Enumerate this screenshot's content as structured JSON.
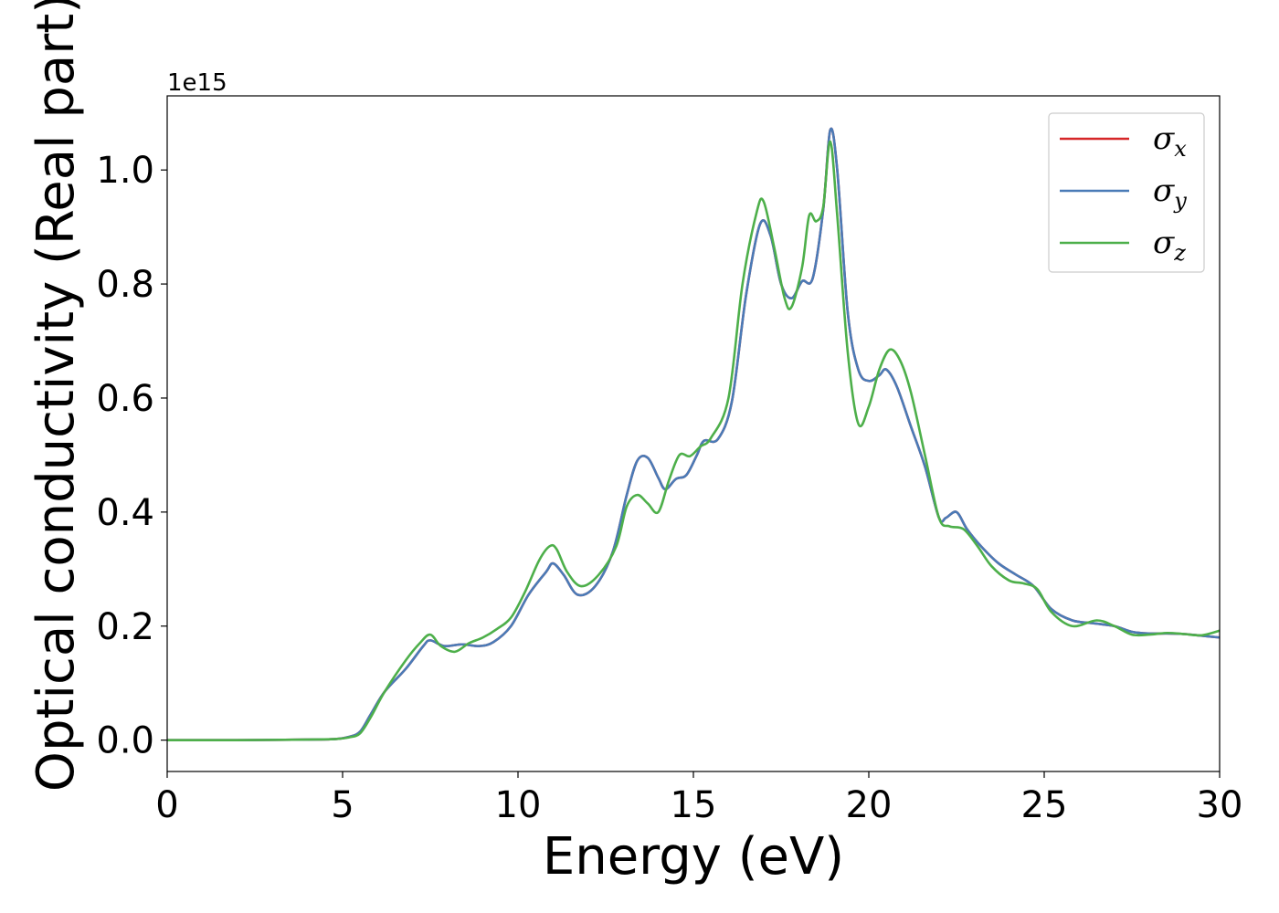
{
  "chart_data": {
    "type": "line",
    "title": "",
    "xlabel": "Energy (eV)",
    "ylabel": "Optical conductivity (Real part)",
    "y_offset_label": "1e15",
    "xlim": [
      0,
      30
    ],
    "ylim": [
      -0.055,
      1.13
    ],
    "x_ticks": [
      0,
      5,
      10,
      15,
      20,
      25,
      30
    ],
    "x_tick_labels": [
      "0",
      "5",
      "10",
      "15",
      "20",
      "25",
      "30"
    ],
    "y_ticks": [
      0.0,
      0.2,
      0.4,
      0.6,
      0.8,
      1.0
    ],
    "y_tick_labels": [
      "0.0",
      "0.2",
      "0.4",
      "0.6",
      "0.8",
      "1.0"
    ],
    "grid": false,
    "legend_position": "top-right",
    "colors": {
      "sigma_x": "#d62728",
      "sigma_y": "#4a7bb7",
      "sigma_z": "#4daf4a"
    },
    "legend": [
      {
        "symbol": "σ",
        "sub": "x",
        "color": "#d62728"
      },
      {
        "symbol": "σ",
        "sub": "y",
        "color": "#4a7bb7"
      },
      {
        "symbol": "σ",
        "sub": "z",
        "color": "#4daf4a"
      }
    ],
    "series": [
      {
        "name": "σx",
        "color": "#d62728",
        "x": [
          0,
          2,
          4,
          4.8,
          5.2,
          5.5,
          5.8,
          6.2,
          6.8,
          7.3,
          7.5,
          7.9,
          8.4,
          8.9,
          9.3,
          9.8,
          10.3,
          10.8,
          11.0,
          11.3,
          11.7,
          12.2,
          12.7,
          13.1,
          13.4,
          13.7,
          14.0,
          14.2,
          14.5,
          14.8,
          15.1,
          15.3,
          15.7,
          16.1,
          16.5,
          16.9,
          17.2,
          17.5,
          17.8,
          18.1,
          18.4,
          18.7,
          18.9,
          19.1,
          19.4,
          19.7,
          20.0,
          20.3,
          20.5,
          20.8,
          21.2,
          21.6,
          22.0,
          22.2,
          22.5,
          22.8,
          23.2,
          23.7,
          24.2,
          24.7,
          25.2,
          25.8,
          26.4,
          27.0,
          27.5,
          28.0,
          28.5,
          29.0,
          29.5,
          30.0
        ],
        "y": [
          0.0,
          0.0,
          0.001,
          0.002,
          0.006,
          0.015,
          0.045,
          0.085,
          0.125,
          0.165,
          0.175,
          0.165,
          0.168,
          0.165,
          0.172,
          0.2,
          0.255,
          0.295,
          0.31,
          0.29,
          0.255,
          0.27,
          0.33,
          0.43,
          0.49,
          0.495,
          0.46,
          0.44,
          0.458,
          0.465,
          0.5,
          0.525,
          0.528,
          0.595,
          0.78,
          0.905,
          0.885,
          0.8,
          0.775,
          0.805,
          0.81,
          0.93,
          1.07,
          1.0,
          0.75,
          0.65,
          0.63,
          0.64,
          0.65,
          0.62,
          0.55,
          0.48,
          0.39,
          0.39,
          0.4,
          0.37,
          0.34,
          0.31,
          0.29,
          0.27,
          0.23,
          0.21,
          0.205,
          0.2,
          0.19,
          0.187,
          0.187,
          0.186,
          0.183,
          0.18
        ]
      },
      {
        "name": "σy",
        "color": "#4a7bb7",
        "x": [
          0,
          2,
          4,
          4.8,
          5.2,
          5.5,
          5.8,
          6.2,
          6.8,
          7.3,
          7.5,
          7.9,
          8.4,
          8.9,
          9.3,
          9.8,
          10.3,
          10.8,
          11.0,
          11.3,
          11.7,
          12.2,
          12.7,
          13.1,
          13.4,
          13.7,
          14.0,
          14.2,
          14.5,
          14.8,
          15.1,
          15.3,
          15.7,
          16.1,
          16.5,
          16.9,
          17.2,
          17.5,
          17.8,
          18.1,
          18.4,
          18.7,
          18.9,
          19.1,
          19.4,
          19.7,
          20.0,
          20.3,
          20.5,
          20.8,
          21.2,
          21.6,
          22.0,
          22.2,
          22.5,
          22.8,
          23.2,
          23.7,
          24.2,
          24.7,
          25.2,
          25.8,
          26.4,
          27.0,
          27.5,
          28.0,
          28.5,
          29.0,
          29.5,
          30.0
        ],
        "y": [
          0.0,
          0.0,
          0.001,
          0.002,
          0.006,
          0.015,
          0.045,
          0.085,
          0.125,
          0.165,
          0.175,
          0.165,
          0.168,
          0.165,
          0.172,
          0.2,
          0.255,
          0.295,
          0.31,
          0.29,
          0.255,
          0.27,
          0.33,
          0.43,
          0.49,
          0.495,
          0.46,
          0.44,
          0.458,
          0.465,
          0.5,
          0.525,
          0.528,
          0.595,
          0.78,
          0.905,
          0.885,
          0.8,
          0.775,
          0.805,
          0.81,
          0.93,
          1.07,
          1.0,
          0.75,
          0.65,
          0.63,
          0.64,
          0.65,
          0.62,
          0.55,
          0.48,
          0.39,
          0.39,
          0.4,
          0.37,
          0.34,
          0.31,
          0.29,
          0.27,
          0.23,
          0.21,
          0.205,
          0.2,
          0.19,
          0.187,
          0.187,
          0.186,
          0.183,
          0.18
        ]
      },
      {
        "name": "σz",
        "color": "#4daf4a",
        "x": [
          0,
          2,
          4,
          4.8,
          5.2,
          5.5,
          5.8,
          6.2,
          6.8,
          7.2,
          7.5,
          7.8,
          8.2,
          8.6,
          9.0,
          9.4,
          9.8,
          10.2,
          10.6,
          10.9,
          11.1,
          11.4,
          11.8,
          12.3,
          12.8,
          13.1,
          13.4,
          13.7,
          14.0,
          14.3,
          14.6,
          14.9,
          15.2,
          15.5,
          16.0,
          16.4,
          16.8,
          17.0,
          17.3,
          17.6,
          17.8,
          18.1,
          18.3,
          18.5,
          18.7,
          18.9,
          19.1,
          19.4,
          19.7,
          20.0,
          20.3,
          20.6,
          20.9,
          21.2,
          21.6,
          22.0,
          22.3,
          22.7,
          23.1,
          23.5,
          24.0,
          24.4,
          24.8,
          25.2,
          25.8,
          26.5,
          27.0,
          27.5,
          28.0,
          28.5,
          29.0,
          29.5,
          30.0
        ],
        "y": [
          0.0,
          0.0,
          0.001,
          0.002,
          0.005,
          0.012,
          0.04,
          0.085,
          0.14,
          0.17,
          0.185,
          0.165,
          0.155,
          0.17,
          0.18,
          0.195,
          0.215,
          0.26,
          0.315,
          0.34,
          0.335,
          0.295,
          0.27,
          0.29,
          0.34,
          0.41,
          0.43,
          0.415,
          0.4,
          0.455,
          0.5,
          0.498,
          0.515,
          0.53,
          0.6,
          0.8,
          0.925,
          0.945,
          0.865,
          0.775,
          0.76,
          0.83,
          0.92,
          0.91,
          0.935,
          1.05,
          0.92,
          0.68,
          0.555,
          0.585,
          0.65,
          0.685,
          0.665,
          0.61,
          0.5,
          0.39,
          0.375,
          0.37,
          0.34,
          0.305,
          0.28,
          0.275,
          0.265,
          0.225,
          0.2,
          0.21,
          0.2,
          0.185,
          0.185,
          0.188,
          0.186,
          0.184,
          0.192
        ]
      }
    ]
  }
}
